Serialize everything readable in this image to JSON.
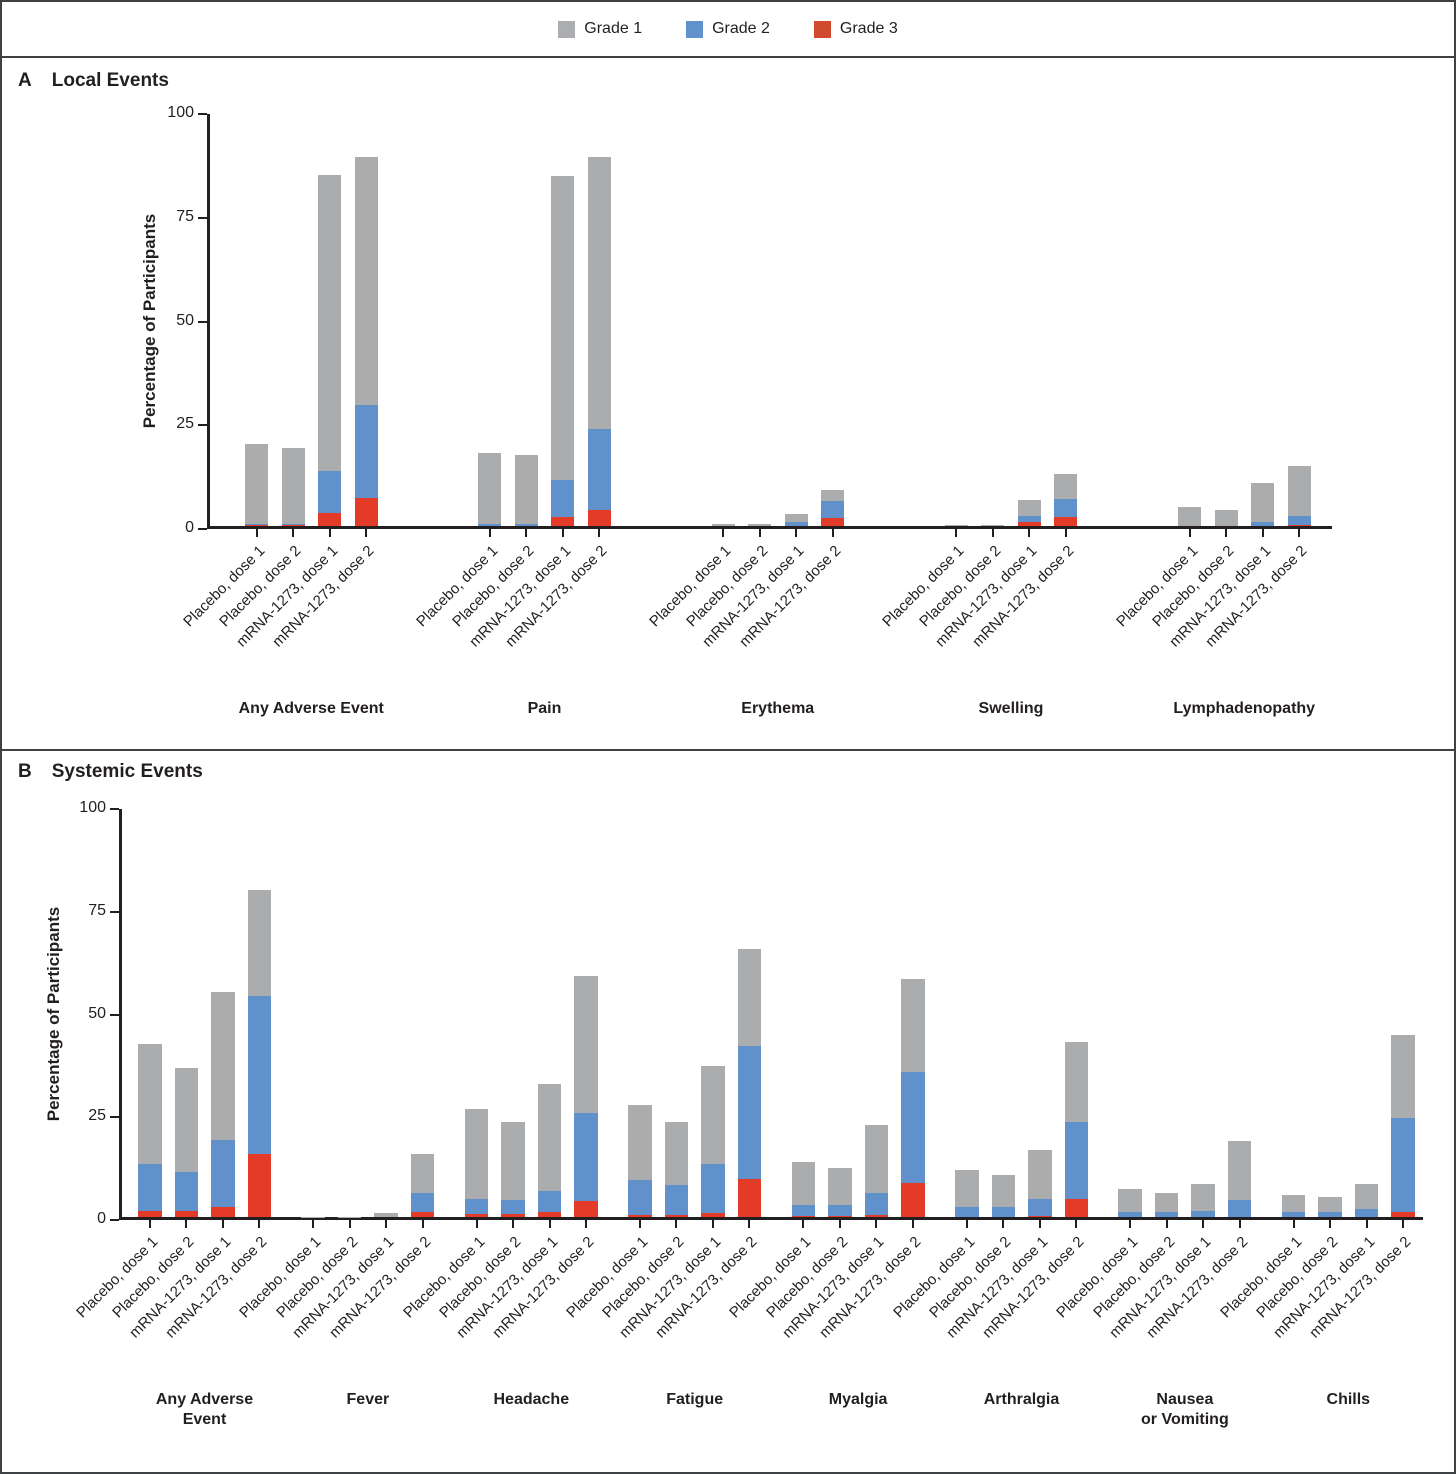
{
  "legend": {
    "items": [
      {
        "label": "Grade 1",
        "color": "#abadb0"
      },
      {
        "label": "Grade 2",
        "color": "#6191ca"
      },
      {
        "label": "Grade 3",
        "color": "#cf4a2f"
      }
    ]
  },
  "y_axis": {
    "label": "Percentage of Participants",
    "ticks": [
      0,
      25,
      50,
      75,
      100
    ],
    "ylim": [
      0,
      100
    ]
  },
  "bar_labels": [
    "Placebo, dose 1",
    "Placebo, dose 2",
    "mRNA-1273, dose 1",
    "mRNA-1273, dose 2"
  ],
  "colors": {
    "grade1": "#aaacae",
    "grade2": "#6191ca",
    "grade3": "#e43a28"
  },
  "panelA": {
    "letter": "A",
    "title": "Local Events"
  },
  "panelB": {
    "letter": "B",
    "title": "Systemic Events"
  },
  "chart_data": [
    {
      "type": "bar",
      "stacked": true,
      "panel": "A",
      "title": "Local Events",
      "ylabel": "Percentage of Participants",
      "ylim": [
        0,
        100
      ],
      "series_stack_order_bottom_to_top": [
        "grade3",
        "grade2",
        "grade1"
      ],
      "bar_labels": [
        "Placebo, dose 1",
        "Placebo, dose 2",
        "mRNA-1273, dose 1",
        "mRNA-1273, dose 2"
      ],
      "groups": [
        {
          "label": "Any Adverse Event",
          "bars": [
            {
              "grade1": 19.2,
              "grade2": 0.4,
              "grade3": 0.2
            },
            {
              "grade1": 18.2,
              "grade2": 0.4,
              "grade3": 0.2
            },
            {
              "grade1": 71.3,
              "grade2": 10.0,
              "grade3": 3.2
            },
            {
              "grade1": 59.9,
              "grade2": 22.3,
              "grade3": 6.8
            }
          ]
        },
        {
          "label": "Pain",
          "bars": [
            {
              "grade1": 17.2,
              "grade2": 0.4,
              "grade3": 0
            },
            {
              "grade1": 16.7,
              "grade2": 0.4,
              "grade3": 0
            },
            {
              "grade1": 73.3,
              "grade2": 8.8,
              "grade3": 2.2
            },
            {
              "grade1": 65.6,
              "grade2": 19.5,
              "grade3": 3.8
            }
          ]
        },
        {
          "label": "Erythema",
          "bars": [
            {
              "grade1": 0.4,
              "grade2": 0,
              "grade3": 0
            },
            {
              "grade1": 0.4,
              "grade2": 0,
              "grade3": 0
            },
            {
              "grade1": 1.9,
              "grade2": 0.9,
              "grade3": 0
            },
            {
              "grade1": 2.7,
              "grade2": 4.1,
              "grade3": 1.9
            }
          ]
        },
        {
          "label": "Swelling",
          "bars": [
            {
              "grade1": 0.3,
              "grade2": 0,
              "grade3": 0
            },
            {
              "grade1": 0.3,
              "grade2": 0,
              "grade3": 0
            },
            {
              "grade1": 3.8,
              "grade2": 1.5,
              "grade3": 0.9
            },
            {
              "grade1": 6.1,
              "grade2": 4.3,
              "grade3": 2.1
            }
          ]
        },
        {
          "label": "Lymphadenopathy",
          "bars": [
            {
              "grade1": 4.7,
              "grade2": 0,
              "grade3": 0
            },
            {
              "grade1": 3.8,
              "grade2": 0,
              "grade3": 0
            },
            {
              "grade1": 9.4,
              "grade2": 1.0,
              "grade3": 0
            },
            {
              "grade1": 11.9,
              "grade2": 2.2,
              "grade3": 0.3
            }
          ]
        }
      ]
    },
    {
      "type": "bar",
      "stacked": true,
      "panel": "B",
      "title": "Systemic Events",
      "ylabel": "Percentage of Participants",
      "ylim": [
        0,
        100
      ],
      "series_stack_order_bottom_to_top": [
        "grade3",
        "grade2",
        "grade1"
      ],
      "bar_labels": [
        "Placebo, dose 1",
        "Placebo, dose 2",
        "mRNA-1273, dose 1",
        "mRNA-1273, dose 2"
      ],
      "groups": [
        {
          "label": "Any Adverse\nEvent",
          "bars": [
            {
              "grade1": 29.2,
              "grade2": 11.5,
              "grade3": 1.4
            },
            {
              "grade1": 25.3,
              "grade2": 9.6,
              "grade3": 1.4
            },
            {
              "grade1": 36.0,
              "grade2": 16.3,
              "grade3": 2.5
            },
            {
              "grade1": 25.9,
              "grade2": 38.4,
              "grade3": 15.3
            }
          ]
        },
        {
          "label": "Fever",
          "bars": [
            {
              "grade1": 0.1,
              "grade2": 0,
              "grade3": 0
            },
            {
              "grade1": 0.1,
              "grade2": 0,
              "grade3": 0
            },
            {
              "grade1": 0.9,
              "grade2": 0,
              "grade3": 0
            },
            {
              "grade1": 9.5,
              "grade2": 4.6,
              "grade3": 1.2
            }
          ]
        },
        {
          "label": "Headache",
          "bars": [
            {
              "grade1": 21.8,
              "grade2": 3.6,
              "grade3": 0.8
            },
            {
              "grade1": 18.9,
              "grade2": 3.4,
              "grade3": 0.7
            },
            {
              "grade1": 26.1,
              "grade2": 5.0,
              "grade3": 1.3
            },
            {
              "grade1": 33.2,
              "grade2": 21.6,
              "grade3": 3.8
            }
          ]
        },
        {
          "label": "Fatigue",
          "bars": [
            {
              "grade1": 18.4,
              "grade2": 8.5,
              "grade3": 0.4
            },
            {
              "grade1": 15.2,
              "grade2": 7.4,
              "grade3": 0.4
            },
            {
              "grade1": 24.0,
              "grade2": 11.8,
              "grade3": 1.0
            },
            {
              "grade1": 23.6,
              "grade2": 32.4,
              "grade3": 9.2
            }
          ]
        },
        {
          "label": "Myalgia",
          "bars": [
            {
              "grade1": 10.4,
              "grade2": 2.7,
              "grade3": 0.2
            },
            {
              "grade1": 9.1,
              "grade2": 2.7,
              "grade3": 0.2
            },
            {
              "grade1": 16.4,
              "grade2": 5.3,
              "grade3": 0.6
            },
            {
              "grade1": 22.5,
              "grade2": 27.1,
              "grade3": 8.3
            }
          ]
        },
        {
          "label": "Arthralgia",
          "bars": [
            {
              "grade1": 9.0,
              "grade2": 2.4,
              "grade3": 0
            },
            {
              "grade1": 7.8,
              "grade2": 2.4,
              "grade3": 0
            },
            {
              "grade1": 11.9,
              "grade2": 4.0,
              "grade3": 0.3
            },
            {
              "grade1": 19.5,
              "grade2": 18.7,
              "grade3": 4.5
            }
          ]
        },
        {
          "label": "Nausea\nor Vomiting",
          "bars": [
            {
              "grade1": 5.5,
              "grade2": 1.2,
              "grade3": 0
            },
            {
              "grade1": 4.7,
              "grade2": 1.2,
              "grade3": 0
            },
            {
              "grade1": 6.5,
              "grade2": 1.5,
              "grade3": 0
            },
            {
              "grade1": 14.4,
              "grade2": 4.1,
              "grade3": 0
            }
          ]
        },
        {
          "label": "Chills",
          "bars": [
            {
              "grade1": 4.1,
              "grade2": 1.3,
              "grade3": 0
            },
            {
              "grade1": 3.6,
              "grade2": 1.3,
              "grade3": 0
            },
            {
              "grade1": 6.0,
              "grade2": 2.0,
              "grade3": 0
            },
            {
              "grade1": 20.3,
              "grade2": 22.8,
              "grade3": 1.2
            }
          ]
        }
      ]
    }
  ]
}
